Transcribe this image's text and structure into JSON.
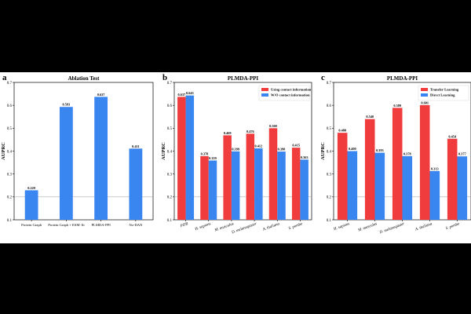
{
  "figure": {
    "bar_color_primary": "#3a86f0",
    "bar_color_red": "#f03c3c",
    "background": "#ffffff"
  },
  "chart_data": [
    {
      "panel": "a",
      "type": "bar",
      "title": "Ablation Test",
      "xlabel": "",
      "ylabel": "AUPRC",
      "ylim": [
        0.1,
        0.7
      ],
      "yticks": [
        "0.1",
        "0.2",
        "0.3",
        "0.4",
        "0.5",
        "0.6",
        "0.7"
      ],
      "categories": [
        "Protein Graph",
        "Protein Graph + ESM-1b",
        "PLMDA-PPI",
        "No-DAN"
      ],
      "series": [
        {
          "values": [
            0.229,
            0.593,
            0.637,
            0.411
          ],
          "labels": [
            "0.229",
            "0.593",
            "0.637",
            "0.411"
          ],
          "color": "#3a86f0"
        }
      ],
      "grid": false,
      "reference_line": 0.2
    },
    {
      "panel": "b",
      "type": "bar",
      "title": "PLMDA-PPI",
      "xlabel": "",
      "ylabel": "AUPRC",
      "ylim": [
        0.1,
        0.7
      ],
      "yticks": [
        "0.1",
        "0.2",
        "0.3",
        "0.4",
        "0.5",
        "0.6",
        "0.7"
      ],
      "categories": [
        "PDB",
        "H. sapiens",
        "M. musculus",
        "D. melanogaster",
        "A. thaliana",
        "S. pombe"
      ],
      "series": [
        {
          "name": "Using contact information",
          "values": [
            0.637,
            0.378,
            0.469,
            0.476,
            0.5,
            0.415
          ],
          "labels": [
            "0.637",
            "0.378",
            "0.469",
            "0.476",
            "0.500",
            "0.415"
          ],
          "color": "#f03c3c"
        },
        {
          "name": "W/O contact information",
          "values": [
            0.643,
            0.359,
            0.399,
            0.412,
            0.398,
            0.363
          ],
          "labels": [
            "0.643",
            "0.359",
            "0.399",
            "0.412",
            "0.398",
            "0.363"
          ],
          "color": "#3a86f0"
        }
      ],
      "legend": "top-right",
      "grid": false,
      "reference_line": 0.2
    },
    {
      "panel": "c",
      "type": "bar",
      "title": "PLMDA-PPI",
      "xlabel": "",
      "ylabel": "AUPRC",
      "ylim": [
        0.1,
        0.7
      ],
      "yticks": [
        "0.1",
        "0.2",
        "0.3",
        "0.4",
        "0.5",
        "0.6",
        "0.7"
      ],
      "categories": [
        "H. sapiens",
        "M. musculus",
        "D. melanogaster",
        "A. thaliana",
        "S. pombe"
      ],
      "series": [
        {
          "name": "Transfer Learning",
          "values": [
            0.48,
            0.54,
            0.589,
            0.601,
            0.454
          ],
          "labels": [
            "0.480",
            "0.540",
            "0.589",
            "0.601",
            "0.454"
          ],
          "color": "#f03c3c"
        },
        {
          "name": "Direct Learning",
          "values": [
            0.4,
            0.393,
            0.378,
            0.313,
            0.377
          ],
          "labels": [
            "0.400",
            "0.393",
            "0.378",
            "0.313",
            "0.377"
          ],
          "color": "#3a86f0"
        }
      ],
      "legend": "top-right",
      "grid": false,
      "reference_line": 0.2
    }
  ]
}
